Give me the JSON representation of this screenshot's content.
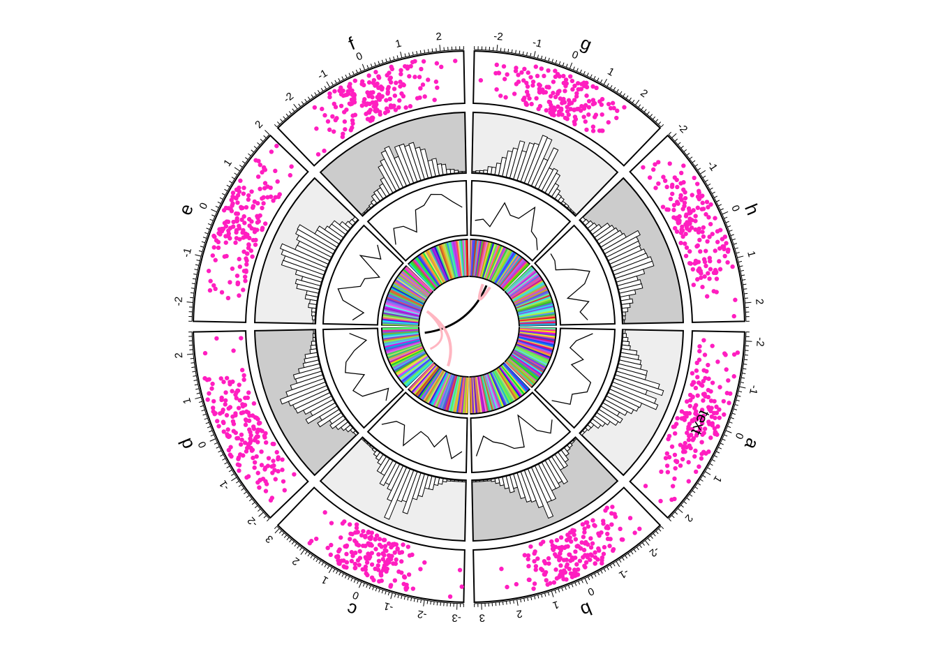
{
  "chart_data": {
    "type": "circular",
    "sectors": [
      {
        "name": "a",
        "xlim": [
          -2.2,
          2.3
        ]
      },
      {
        "name": "b",
        "xlim": [
          -2.6,
          3.2
        ]
      },
      {
        "name": "c",
        "xlim": [
          -3.2,
          3.1
        ]
      },
      {
        "name": "d",
        "xlim": [
          -2.2,
          2.5
        ]
      },
      {
        "name": "e",
        "xlim": [
          -2.4,
          2.0
        ]
      },
      {
        "name": "f",
        "xlim": [
          -2.7,
          2.6
        ]
      },
      {
        "name": "g",
        "xlim": [
          -2.6,
          2.9
        ]
      },
      {
        "name": "h",
        "xlim": [
          -2.1,
          2.4
        ]
      }
    ],
    "track_backgrounds": {
      "histogram": [
        "#eeeeee",
        "#cccccc",
        "#eeeeee",
        "#cccccc",
        "#eeeeee",
        "#cccccc",
        "#eeeeee",
        "#cccccc"
      ]
    },
    "point_color": "#ff1ec0",
    "annotation": {
      "text": "text",
      "sector": "a",
      "x": 0.5,
      "y": 0.5
    },
    "link_colors": [
      "#000000",
      "#ffb6c1"
    ]
  }
}
